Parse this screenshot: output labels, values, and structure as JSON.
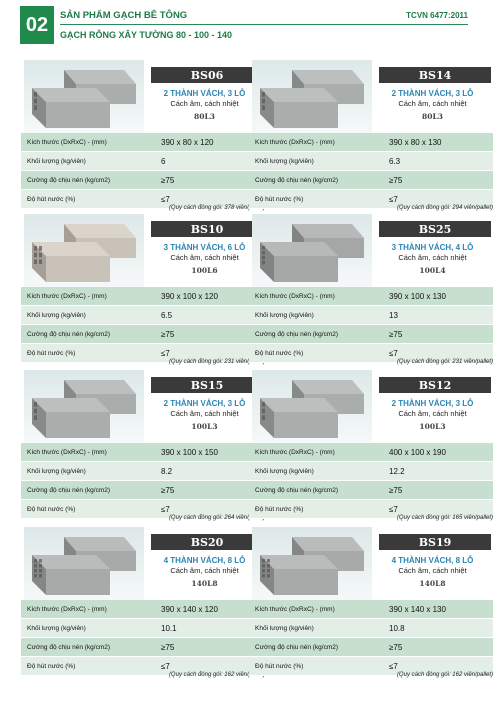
{
  "header": {
    "number": "02",
    "title": "SẢN PHẨM GẠCH BÊ TÔNG",
    "code": "TCVN 6477:2011",
    "subtitle": "GẠCH RỖNG XÂY TƯỜNG 80 - 100 - 140"
  },
  "row_labels": {
    "size": "Kích thước (DxRxC) - (mm)",
    "weight": "Khối lượng (kg/viên)",
    "strength": "Cường độ chịu nén (kg/cm2)",
    "water": "Độ hút nước (%)"
  },
  "products": [
    {
      "code": "BS06",
      "desc1": "2 THÀNH VÁCH, 3 LỖ",
      "desc2": "Cách âm, cách nhiệt",
      "type": "80L3",
      "size": "390 x 80 x 120",
      "weight": "6",
      "strength": "≥75",
      "water": "≤7",
      "note": "(Quy cách đóng gói: 378 viên/pallet)",
      "holes": 3,
      "color": "#a9adab"
    },
    {
      "code": "BS14",
      "desc1": "2 THÀNH VÁCH, 3 LỖ",
      "desc2": "Cách âm, cách nhiệt",
      "type": "80L3",
      "size": "390 x 80 x 130",
      "weight": "6.3",
      "strength": "≥75",
      "water": "≤7",
      "note": "(Quy cách đóng gói: 294 viên/pallet)",
      "holes": 3,
      "color": "#a9adab"
    },
    {
      "code": "BS10",
      "desc1": "3 THÀNH VÁCH, 6 LỖ",
      "desc2": "Cách âm, cách nhiệt",
      "type": "100L6",
      "size": "390 x 100 x 120",
      "weight": "6.5",
      "strength": "≥75",
      "water": "≤7",
      "note": "(Quy cách đóng gói: 231 viên/pallet)",
      "holes": 6,
      "color": "#c9c2b9"
    },
    {
      "code": "BS25",
      "desc1": "3 THÀNH VÁCH, 4 LỖ",
      "desc2": "Cách âm, cách nhiệt",
      "type": "100L4",
      "size": "390 x 100 x 130",
      "weight": "13",
      "strength": "≥75",
      "water": "≤7",
      "note": "(Quy cách đóng gói: 231 viên/pallet)",
      "holes": 4,
      "color": "#a4a7a6"
    },
    {
      "code": "BS15",
      "desc1": "2 THÀNH VÁCH, 3 LỖ",
      "desc2": "Cách âm, cách nhiệt",
      "type": "100L3",
      "size": "390 x 100 x 150",
      "weight": "8.2",
      "strength": "≥75",
      "water": "≤7",
      "note": "(Quy cách đóng gói: 264 viên/pallet)",
      "holes": 3,
      "color": "#a9adab"
    },
    {
      "code": "BS12",
      "desc1": "2 THÀNH VÁCH, 3 LỖ",
      "desc2": "Cách âm, cách nhiệt",
      "type": "100L3",
      "size": "400 x 100 x 190",
      "weight": "12.2",
      "strength": "≥75",
      "water": "≤7",
      "note": "(Quy cách đóng gói: 165 viên/pallet)",
      "holes": 3,
      "color": "#a9adab"
    },
    {
      "code": "BS20",
      "desc1": "4 THÀNH VÁCH, 8 LỖ",
      "desc2": "Cách âm, cách nhiệt",
      "type": "140L8",
      "size": "390 x 140 x 120",
      "weight": "10.1",
      "strength": "≥75",
      "water": "≤7",
      "note": "(Quy cách đóng gói: 162 viên/pallet)",
      "holes": 8,
      "color": "#a7aaa9"
    },
    {
      "code": "BS19",
      "desc1": "4 THÀNH VÁCH, 8 LỖ",
      "desc2": "Cách âm, cách nhiệt",
      "type": "140L8",
      "size": "390 x 140 x 130",
      "weight": "10.8",
      "strength": "≥75",
      "water": "≤7",
      "note": "(Quy cách đóng gói: 162 viên/pallet)",
      "holes": 8,
      "color": "#a7aaa9"
    }
  ]
}
